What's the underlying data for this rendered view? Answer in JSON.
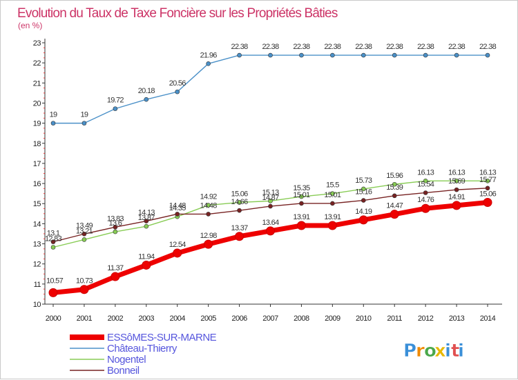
{
  "chart_data": {
    "type": "line",
    "title": "Evolution du Taux de Taxe Foncière sur les Propriétés Bâties",
    "subtitle": "(en %)",
    "x": [
      "2000",
      "2001",
      "2002",
      "2003",
      "2004",
      "2005",
      "2006",
      "2007",
      "2008",
      "2009",
      "2010",
      "2011",
      "2012",
      "2013",
      "2014"
    ],
    "ylim": [
      10,
      23
    ],
    "yticks": [
      "10",
      "11",
      "12",
      "13",
      "14",
      "15",
      "16",
      "17",
      "18",
      "19",
      "20",
      "21",
      "22",
      "23"
    ],
    "series": [
      {
        "name": "ESSôMES-SUR-MARNE",
        "color": "#ee0000",
        "values": [
          10.57,
          10.73,
          11.37,
          11.94,
          12.54,
          12.98,
          13.37,
          13.64,
          13.91,
          13.91,
          14.19,
          14.47,
          14.76,
          14.91,
          15.06
        ],
        "labels": [
          "10.57",
          "10.73",
          "11.37",
          "11.94",
          "12.54",
          "12.98",
          "13.37",
          "13.64",
          "13.91",
          "13.91",
          "14.19",
          "14.47",
          "14.76",
          "14.91",
          "15.06"
        ]
      },
      {
        "name": "Château-Thierry",
        "color": "#4a90c8",
        "values": [
          19,
          19,
          19.72,
          20.18,
          20.56,
          21.96,
          22.38,
          22.38,
          22.38,
          22.38,
          22.38,
          22.38,
          22.38,
          22.38,
          22.38
        ],
        "labels": [
          "19",
          "19",
          "19.72",
          "20.18",
          "20.56",
          "21.96",
          "22.38",
          "22.38",
          "22.38",
          "22.38",
          "22.38",
          "22.38",
          "22.38",
          "22.38",
          "22.38"
        ]
      },
      {
        "name": "Nogentel",
        "color": "#88cc55",
        "values": [
          12.83,
          13.21,
          13.6,
          13.87,
          14.35,
          14.92,
          15.06,
          15.13,
          15.35,
          15.5,
          15.73,
          15.96,
          16.13,
          16.13,
          16.13
        ],
        "labels": [
          "12.83",
          "13.21",
          "13.6",
          "13.87",
          "14.35",
          "14.92",
          "15.06",
          "15.13",
          "15.35",
          "15.5",
          "15.73",
          "15.96",
          "16.13",
          "16.13",
          "16.13"
        ]
      },
      {
        "name": "Bonneil",
        "color": "#772222",
        "values": [
          13.1,
          13.49,
          13.83,
          14.13,
          14.48,
          14.48,
          14.66,
          14.87,
          15.01,
          15.01,
          15.16,
          15.39,
          15.54,
          15.69,
          15.77
        ],
        "labels": [
          "13.1",
          "13.49",
          "13.83",
          "14.13",
          "14.48",
          "14.48",
          "14.66",
          "14.87",
          "15.01",
          "15.01",
          "15.16",
          "15.39",
          "15.54",
          "15.69",
          "15.77"
        ]
      }
    ],
    "legend_position": "bottom-left",
    "grid": false
  },
  "branding": {
    "logo_text": "Proxiti",
    "letters": [
      "P",
      "r",
      "o",
      "x",
      "i",
      "t",
      "i"
    ],
    "letter_colors": [
      "#3a8fd8",
      "#f08a00",
      "#4aa84a",
      "#e8b800",
      "#3a8fd8",
      "#e05050",
      "#3a8fd8"
    ]
  },
  "colors": {
    "title": "#cc3366",
    "axis": "#333333",
    "legend_text": "#5555dd"
  }
}
